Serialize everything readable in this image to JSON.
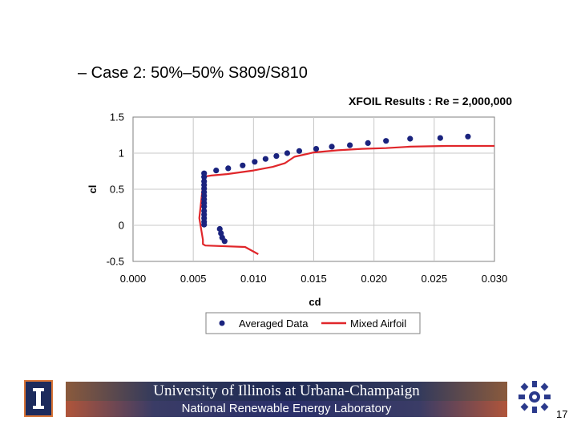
{
  "slide": {
    "bullet": "– Case 2: 50%–50% S809/S810",
    "footer_line1": "University of Illinois at Urbana-Champaign",
    "footer_line2": "National Renewable Energy Laboratory",
    "logo_left_letter": "I",
    "page_number": "17"
  },
  "chart_data": {
    "type": "scatter",
    "title": "XFOIL Results : Re = 2,000,000",
    "xlabel": "cd",
    "ylabel": "cl",
    "xlim": [
      0.0,
      0.03
    ],
    "ylim": [
      -0.5,
      1.5
    ],
    "xticks": [
      "0.000",
      "0.005",
      "0.010",
      "0.015",
      "0.020",
      "0.025",
      "0.030"
    ],
    "yticks": [
      "-0.5",
      "0",
      "0.5",
      "1",
      "1.5"
    ],
    "grid": true,
    "legend_position": "bottom",
    "series": [
      {
        "name": "Averaged Data",
        "style": "markers",
        "color": "#1a237e",
        "x": [
          0.0076,
          0.0074,
          0.0073,
          0.0072,
          0.0059,
          0.0059,
          0.0059,
          0.0059,
          0.0059,
          0.0059,
          0.0059,
          0.0059,
          0.0059,
          0.0059,
          0.0059,
          0.0059,
          0.0059,
          0.0059,
          0.0059,
          0.0069,
          0.0079,
          0.0091,
          0.0101,
          0.011,
          0.0119,
          0.0128,
          0.0138,
          0.0152,
          0.0165,
          0.018,
          0.0195,
          0.021,
          0.023,
          0.0255,
          0.0278
        ],
        "y": [
          -0.22,
          -0.17,
          -0.11,
          -0.05,
          0.01,
          0.05,
          0.1,
          0.15,
          0.2,
          0.26,
          0.31,
          0.36,
          0.41,
          0.46,
          0.51,
          0.56,
          0.61,
          0.67,
          0.72,
          0.76,
          0.79,
          0.83,
          0.88,
          0.92,
          0.96,
          1.0,
          1.03,
          1.06,
          1.09,
          1.11,
          1.14,
          1.17,
          1.2,
          1.21,
          1.23
        ]
      },
      {
        "name": "Mixed Airfoil",
        "style": "line",
        "color": "#e0262a",
        "x": [
          0.0104,
          0.0093,
          0.006,
          0.0058,
          0.0058,
          0.0055,
          0.0057,
          0.0058,
          0.0058,
          0.0061,
          0.0065,
          0.0078,
          0.01,
          0.0116,
          0.0126,
          0.0134,
          0.015,
          0.017,
          0.019,
          0.021,
          0.023,
          0.026,
          0.03
        ],
        "y": [
          -0.4,
          -0.3,
          -0.28,
          -0.26,
          -0.2,
          0.1,
          0.4,
          0.55,
          0.65,
          0.68,
          0.69,
          0.71,
          0.76,
          0.81,
          0.86,
          0.95,
          1.01,
          1.04,
          1.06,
          1.07,
          1.09,
          1.1,
          1.1
        ]
      }
    ]
  }
}
